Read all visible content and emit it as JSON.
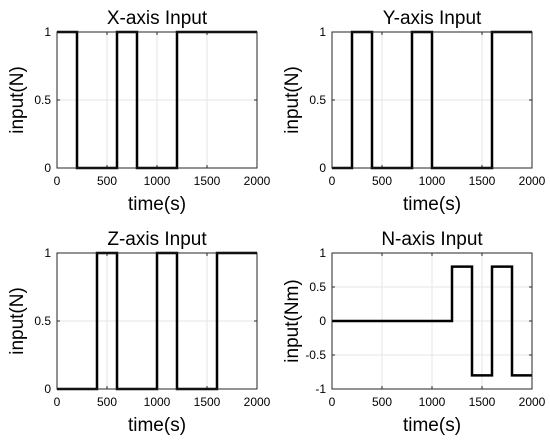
{
  "chart_data": [
    {
      "type": "line",
      "title": "X-axis Input",
      "xlabel": "time(s)",
      "ylabel": "input(N)",
      "xlim": [
        0,
        2000
      ],
      "ylim": [
        0,
        1
      ],
      "xticks": [
        0,
        500,
        1000,
        1500,
        2000
      ],
      "yticks": [
        0,
        0.5,
        1
      ],
      "xtick_labels": [
        "0",
        "500",
        "1000",
        "1500",
        "2000"
      ],
      "ytick_labels": [
        "0",
        "0.5",
        "1"
      ],
      "grid": true,
      "series": [
        {
          "color": "#000000",
          "x": [
            0,
            200,
            200,
            600,
            600,
            800,
            800,
            1200,
            1200,
            2000
          ],
          "y": [
            1,
            1,
            0,
            0,
            1,
            1,
            0,
            0,
            1,
            1
          ]
        }
      ]
    },
    {
      "type": "line",
      "title": "Y-axis Input",
      "xlabel": "time(s)",
      "ylabel": "input(N)",
      "xlim": [
        0,
        2000
      ],
      "ylim": [
        0,
        1
      ],
      "xticks": [
        0,
        500,
        1000,
        1500,
        2000
      ],
      "yticks": [
        0,
        0.5,
        1
      ],
      "xtick_labels": [
        "0",
        "500",
        "1000",
        "1500",
        "2000"
      ],
      "ytick_labels": [
        "0",
        "0.5",
        "1"
      ],
      "grid": true,
      "series": [
        {
          "color": "#000000",
          "x": [
            0,
            200,
            200,
            400,
            400,
            800,
            800,
            1000,
            1000,
            1600,
            1600,
            2000
          ],
          "y": [
            0,
            0,
            1,
            1,
            0,
            0,
            1,
            1,
            0,
            0,
            1,
            1
          ]
        }
      ]
    },
    {
      "type": "line",
      "title": "Z-axis Input",
      "xlabel": "time(s)",
      "ylabel": "input(N)",
      "xlim": [
        0,
        2000
      ],
      "ylim": [
        0,
        1
      ],
      "xticks": [
        0,
        500,
        1000,
        1500,
        2000
      ],
      "yticks": [
        0,
        0.5,
        1
      ],
      "xtick_labels": [
        "0",
        "500",
        "1000",
        "1500",
        "2000"
      ],
      "ytick_labels": [
        "0",
        "0.5",
        "1"
      ],
      "grid": true,
      "series": [
        {
          "color": "#000000",
          "x": [
            0,
            400,
            400,
            600,
            600,
            1000,
            1000,
            1200,
            1200,
            1600,
            1600,
            2000
          ],
          "y": [
            0,
            0,
            1,
            1,
            0,
            0,
            1,
            1,
            0,
            0,
            1,
            1
          ]
        }
      ]
    },
    {
      "type": "line",
      "title": "N-axis Input",
      "xlabel": "time(s)",
      "ylabel": "input(Nm)",
      "xlim": [
        0,
        2000
      ],
      "ylim": [
        -1,
        1
      ],
      "xticks": [
        0,
        500,
        1000,
        1500,
        2000
      ],
      "yticks": [
        -1,
        -0.5,
        0,
        0.5,
        1
      ],
      "xtick_labels": [
        "0",
        "500",
        "1000",
        "1500",
        "2000"
      ],
      "ytick_labels": [
        "-1",
        "-0.5",
        "0",
        "0.5",
        "1"
      ],
      "grid": true,
      "series": [
        {
          "color": "#000000",
          "x": [
            0,
            1200,
            1200,
            1400,
            1400,
            1600,
            1600,
            1800,
            1800,
            2000
          ],
          "y": [
            0,
            0,
            0.8,
            0.8,
            -0.8,
            -0.8,
            0.8,
            0.8,
            -0.8,
            -0.8
          ]
        }
      ]
    }
  ]
}
